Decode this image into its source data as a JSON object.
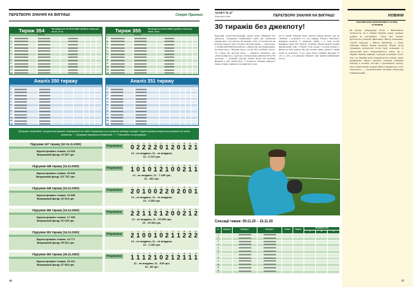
{
  "left_page": {
    "header": "ПЕРЕТВОРИ ЗНАННЯ НА ВИГРАШ!",
    "logo": "Спорт Прогноз",
    "page_number": "16",
    "draws": [
      {
        "title": "Тираж 354",
        "info": "Проводиться 17-18.11.2020, прийом ставок до 21:10, 17.11",
        "col_header": "Команди",
        "rows": 12
      },
      {
        "title": "Тираж 355",
        "info": "Проводиться 18.11.2020, прийом ставок до 18:00, 18.11",
        "col_header": "Команди",
        "rows": 12
      }
    ],
    "analyses": [
      {
        "title": "Аналіз 350 тиражу",
        "rows": 12
      },
      {
        "title": "Аналіз 351 тиражу",
        "rows": 12
      }
    ],
    "note": "Програми попередніх, актуальний варіант перевіряйте на сайті оператора та у пунктах продажу лотереї. Зареєстровані результати вказано за часом київським. * - Програма вважається відмінною. ** - Розкладено за програмою.",
    "results_label": "Результати:",
    "results": [
      {
        "title": "Підсумки 347 тиражу (10-11.11.2020)",
        "stakes": "Зареєстровано ставок: 14 029",
        "fund": "Виграшний фонд: 42 087 грн.",
        "numbers": [
          "0",
          "2",
          "2",
          "2",
          "2",
          "0",
          "1",
          "2",
          "0",
          "1",
          "2",
          "1"
        ],
        "prizes_1": "12 - не вгадано;   11 - не вгадано;",
        "prizes_2": "10 - 6 313 грн."
      },
      {
        "title": "Підсумки 348 тиражу (11.11.2020)",
        "stakes": "Зареєстровано ставок: 35 929",
        "fund": "Виграшний фонд: 107 787 грн.",
        "numbers": [
          "1",
          "0",
          "1",
          "0",
          "1",
          "2",
          "1",
          "0",
          "0",
          "2",
          "1",
          "1"
        ],
        "prizes_1": "12 - не вгадано;   11 - 7 185 грн;",
        "prizes_2": "10 - 462 грн."
      },
      {
        "title": "Підсумки 349 тиражу (12.11.2020)",
        "stakes": "Зареєстровано ставок: 20 838",
        "fund": "Виграшний фонд: 62 514 грн.",
        "numbers": [
          "2",
          "0",
          "1",
          "0",
          "0",
          "2",
          "2",
          "0",
          "2",
          "0",
          "0",
          "1"
        ],
        "prizes_1": "12 - не вгадано;   11 - не вгадано;",
        "prizes_2": "10 - 2 083 грн."
      },
      {
        "title": "Підсумки 350 тиражу (13.11.2020)",
        "stakes": "Зареєстровано ставок: 17 005",
        "fund": "Виграшний фонд: 51 015 грн.",
        "numbers": [
          "2",
          "2",
          "1",
          "1",
          "2",
          "1",
          "2",
          "0",
          "0",
          "2",
          "1",
          "2"
        ],
        "prizes_1": "12 - не вгадано;   11 - 15 306 грн;",
        "prizes_2": "10 - 15 304 грн."
      },
      {
        "title": "Підсумки 351 тиражу (14.11.2020)",
        "stakes": "Зареєстровано ставок: 19 777",
        "fund": "Виграшний фонд: 59 331 грн.",
        "numbers": [
          "2",
          "1",
          "0",
          "0",
          "1",
          "0",
          "2",
          "1",
          "1",
          "2",
          "2",
          "2"
        ],
        "prizes_1": "12 - не вгадано;   11 - не вгадано;",
        "prizes_2": "10 - 1 186 грн."
      },
      {
        "title": "Підсумки 352 тиражу (15.11.2020)",
        "stakes": "Зареєстровано ставок: 29 221",
        "fund": "Виграшний фонд: 87 663 грн.",
        "numbers": [
          "1",
          "1",
          "1",
          "2",
          "1",
          "0",
          "2",
          "1",
          "2",
          "1",
          "1",
          "1"
        ],
        "prizes_1": "12 - не вгадано;   11 - 515 грн;",
        "prizes_2": "10 - 89 грн."
      }
    ]
  },
  "right_page": {
    "issue": "АЗАРТ № 47",
    "issue_date": "(1190) 16-22.11.2020",
    "header": "ПЕРЕТВОРИ ЗНАННЯ НА ВИГРАШ!",
    "section": "НОВИНИ",
    "page_number": "17",
    "article_title": "30 тиражів без джекпоту!",
    "article_col1": "Черговий «азартспортовський» тираж знову обійшовся без джекпоту. Скорідшою безвиграшна серія для любителів українського тоталізатора 30 тиражів, тобто 12 результатів не вгадали жодного разу. Головна сенсація тижня — «спільська» у англійській Національній лізі. «Данчестер над Редбриджем» на виїзді мав у «Вороків Рудо», на що було зроблено всього 5% ставок. На другому місці — перемога «Бонанса» над «Лесков-Оврсом» у другому голландському дивізіоні (9%). На третьому — домашня поразка збірної Грузії від команди Вірменії в Лізі націй (9%). У більшості тиражів минулого тижня ставки отримали головний матч туру.",
    "article_col2": "рії та Англії. Місцеву тижу спіткала збірна Бельгії, яка на «Уемблі» з рахунком 2:1, але швидко Роберто Мартінеса відкрили рахунок. У першому тайму, а в серії гостей відкрився лідер Тібо Куртуа. Голкіпер збірної Бельгії зробив вирішальний сейв. З іншого боку жодна з восьми команд у фіналі не мала шансів. Як уже сказано вище, джекпот тижня знову не розіграно. У нас дуже багато дрібних виграшів за «11» і «10», а ці виграші обіцяють нові тиражі найближчим часом...",
    "sensations_title": "Сенсації тижня: 09.11.20 – 15.11.20",
    "sensations_headers": [
      "№",
      "Формула",
      "Команда 1",
      "Команда 2",
      "Ставки",
      "Варіант",
      "Ймовірність (%)"
    ],
    "sensations_sub": [
      "1",
      "X",
      "2"
    ],
    "sensations_rows": 12,
    "sidebar_title": "ВАКЦИНАЦІЯ ДИНАМІВЦІВ ІЗ КОВІД-ЧУВАННЯ",
    "sidebar_text": "Як відомо, напередодні матчу з Німеччиною з'ясувалося, що в збірної України одразу декілька гравців на коронавірус. Серед них четверо футболістів (Олексій Ярмоленко, Віктор Коваленко, Сергій Сидорчук і Віктор Циганков), а також захисник збірної Вадим Конопля. Наразі після отримання результатів тестів були ізольовані та пропустили матч. Повідомляється також, що у збірній України виявили повторні позитивні тести. Тож і до України мали повернутися всі гравці, однак керівництво збірної ухвалило рішення залишити команду в ізоляції. «Історія з організацією чартеру для ізоляції хворих гравців збірної України має стати показовою», — прокоментував ситуацію Олександр Глиняненський."
  },
  "colors": {
    "green": "#1d6b33",
    "blue": "#1b6fa0",
    "light_green": "#e3efd9",
    "sidebar": "#fdf7dc"
  }
}
